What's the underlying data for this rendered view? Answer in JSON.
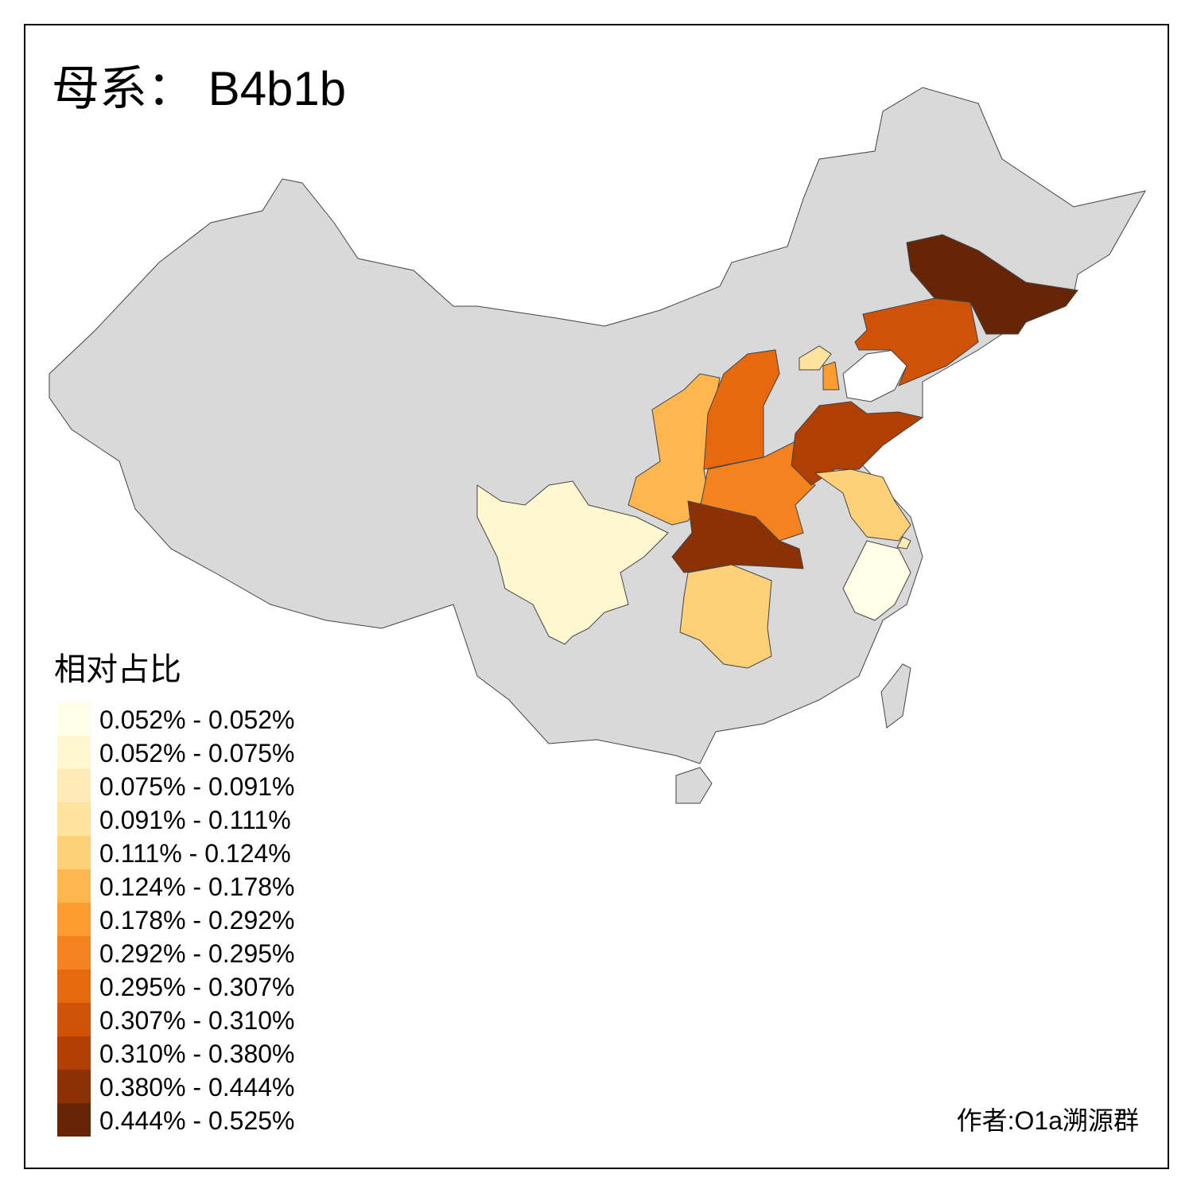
{
  "title": "母系： B4b1b",
  "legend": {
    "title": "相对占比",
    "items": [
      {
        "label": "0.052% - 0.052%",
        "color": "#fffee6"
      },
      {
        "label": "0.052% - 0.075%",
        "color": "#fff7d0"
      },
      {
        "label": "0.075% - 0.091%",
        "color": "#feebb5"
      },
      {
        "label": "0.091% - 0.111%",
        "color": "#fee39f"
      },
      {
        "label": "0.111% - 0.124%",
        "color": "#fed078"
      },
      {
        "label": "0.124% - 0.178%",
        "color": "#feb64e"
      },
      {
        "label": "0.178% - 0.292%",
        "color": "#fd9d2f"
      },
      {
        "label": "0.292% - 0.295%",
        "color": "#f4821f"
      },
      {
        "label": "0.295% - 0.307%",
        "color": "#e6690f"
      },
      {
        "label": "0.307% - 0.310%",
        "color": "#cf5206"
      },
      {
        "label": "0.310% - 0.380%",
        "color": "#b03f03"
      },
      {
        "label": "0.380% - 0.444%",
        "color": "#8b3105"
      },
      {
        "label": "0.444% - 0.525%",
        "color": "#662506"
      }
    ]
  },
  "credit": "作者:O1a溯源群"
}
